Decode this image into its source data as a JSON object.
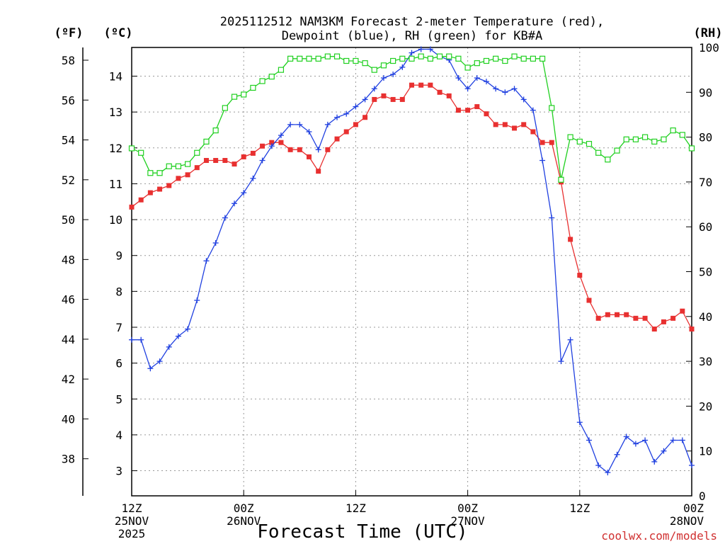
{
  "chart_data": {
    "type": "line",
    "title": "2025112512 NAM3KM Forecast 2-meter Temperature (red),",
    "subtitle": "Dewpoint (blue), RH (green) for KB#A",
    "xlabel": "Forecast Time (UTC)",
    "credit": "coolwx.com/models",
    "units": {
      "fahrenheit": "(ºF)",
      "celsius": "(ºC)",
      "rh": "(RH)"
    },
    "x_ticks": [
      {
        "h": 0,
        "time": "12Z",
        "date": "25NOV",
        "year": "2025"
      },
      {
        "h": 12,
        "time": "00Z",
        "date": "26NOV",
        "year": ""
      },
      {
        "h": 24,
        "time": "12Z",
        "date": "",
        "year": ""
      },
      {
        "h": 36,
        "time": "00Z",
        "date": "27NOV",
        "year": ""
      },
      {
        "h": 48,
        "time": "12Z",
        "date": "",
        "year": ""
      },
      {
        "h": 60,
        "time": "00Z",
        "date": "28NOV",
        "year": ""
      }
    ],
    "xlim": [
      0,
      60
    ],
    "ylim_c": [
      2.3,
      14.8
    ],
    "ylim_f": [
      36.14,
      58.64
    ],
    "ylim_rh": [
      0,
      100
    ],
    "y_ticks_c": [
      3,
      4,
      5,
      6,
      7,
      8,
      9,
      10,
      11,
      12,
      13,
      14
    ],
    "y_ticks_f": [
      38,
      40,
      42,
      44,
      46,
      48,
      50,
      52,
      54,
      56,
      58
    ],
    "y_ticks_rh": [
      0,
      10,
      20,
      30,
      40,
      50,
      60,
      70,
      80,
      90,
      100
    ],
    "colors": {
      "temperature": "#e83030",
      "dewpoint": "#2040e0",
      "rh": "#20d020"
    },
    "hours": [
      0,
      1,
      2,
      3,
      4,
      5,
      6,
      7,
      8,
      9,
      10,
      11,
      12,
      13,
      14,
      15,
      16,
      17,
      18,
      19,
      20,
      21,
      22,
      23,
      24,
      25,
      26,
      27,
      28,
      29,
      30,
      31,
      32,
      33,
      34,
      35,
      36,
      37,
      38,
      39,
      40,
      41,
      42,
      43,
      44,
      45,
      46,
      47,
      48,
      49,
      50,
      51,
      52,
      53,
      54,
      55,
      56,
      57,
      58,
      59,
      60
    ],
    "series": [
      {
        "name": "Temperature (°C)",
        "axis": "c",
        "marker": "filled-square",
        "values": [
          10.35,
          10.55,
          10.75,
          10.85,
          10.95,
          11.15,
          11.25,
          11.45,
          11.65,
          11.65,
          11.65,
          11.55,
          11.75,
          11.85,
          12.05,
          12.15,
          12.15,
          11.95,
          11.95,
          11.75,
          11.35,
          11.95,
          12.25,
          12.45,
          12.65,
          12.85,
          13.35,
          13.45,
          13.35,
          13.35,
          13.75,
          13.75,
          13.75,
          13.55,
          13.45,
          13.05,
          13.05,
          13.15,
          12.95,
          12.65,
          12.65,
          12.55,
          12.65,
          12.45,
          12.15,
          12.15,
          11.05,
          9.45,
          8.45,
          7.75,
          7.25,
          7.35,
          7.35,
          7.35,
          7.25,
          7.25,
          6.95,
          7.15,
          7.25,
          7.45,
          6.95
        ]
      },
      {
        "name": "Dewpoint (°C)",
        "axis": "c",
        "marker": "plus",
        "values": [
          6.65,
          6.65,
          5.85,
          6.05,
          6.45,
          6.75,
          6.95,
          7.75,
          8.85,
          9.35,
          10.05,
          10.45,
          10.75,
          11.15,
          11.65,
          12.05,
          12.35,
          12.65,
          12.65,
          12.45,
          11.95,
          12.65,
          12.85,
          12.95,
          13.15,
          13.35,
          13.65,
          13.95,
          14.05,
          14.25,
          14.65,
          14.75,
          14.75,
          14.55,
          14.45,
          13.95,
          13.65,
          13.95,
          13.85,
          13.65,
          13.55,
          13.65,
          13.35,
          13.05,
          11.65,
          10.05,
          6.05,
          6.65,
          4.35,
          3.85,
          3.15,
          2.95,
          3.45,
          3.95,
          3.75,
          3.85,
          3.25,
          3.55,
          3.85,
          3.85,
          3.15
        ]
      },
      {
        "name": "RH (%)",
        "axis": "rh",
        "marker": "open-square",
        "values": [
          77.5,
          76.5,
          72,
          72,
          73.5,
          73.5,
          74,
          76.5,
          79,
          81.5,
          86.5,
          89,
          89.5,
          91,
          92.5,
          93.5,
          95,
          97.5,
          97.5,
          97.5,
          97.5,
          98,
          98,
          97,
          97,
          96.5,
          95,
          96,
          97,
          97.5,
          97.5,
          98,
          97.5,
          98,
          98,
          97.5,
          95.5,
          96.5,
          97,
          97.5,
          97,
          98,
          97.5,
          97.5,
          97.5,
          86.5,
          70.5,
          80,
          79,
          78.5,
          76.5,
          75,
          77,
          79.5,
          79.5,
          80,
          79,
          79.5,
          81.5,
          80.5,
          77.5
        ]
      }
    ]
  }
}
